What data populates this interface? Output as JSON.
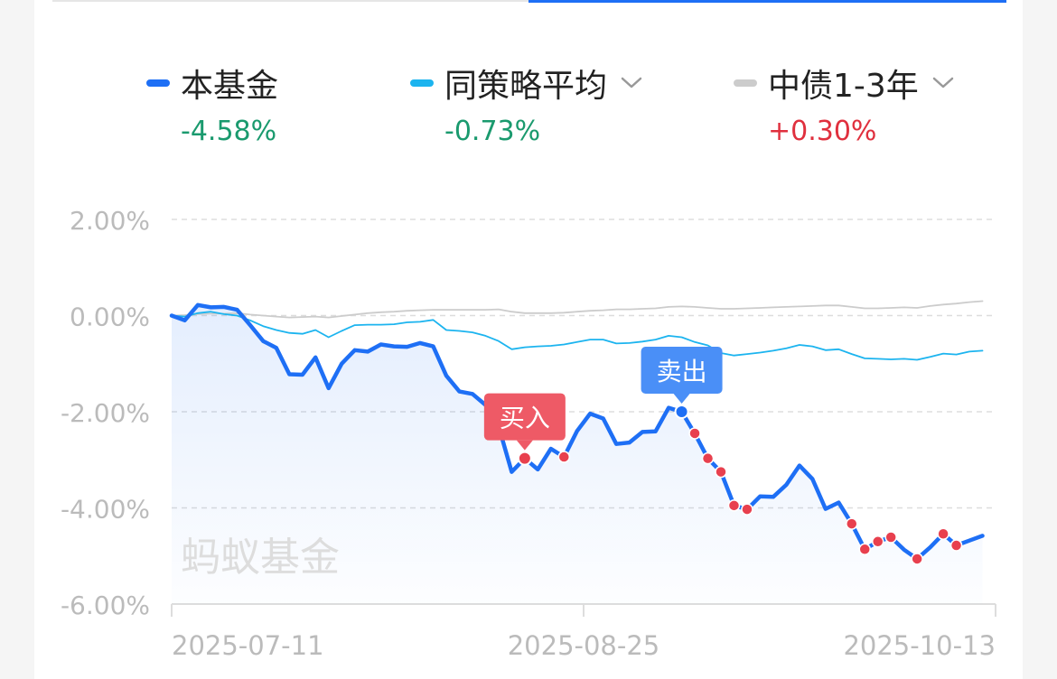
{
  "tabs": {
    "active_color": "#1e6ff5",
    "inactive_color": "#e6e6e6"
  },
  "legend": [
    {
      "name": "本基金",
      "value": "-4.58%",
      "color": "#1e6ff5",
      "value_color": "#1a9a6e",
      "has_dropdown": false
    },
    {
      "name": "同策略平均",
      "value": "-0.73%",
      "color": "#1cb4ef",
      "value_color": "#1a9a6e",
      "has_dropdown": true,
      "icon": "chevron-down-icon"
    },
    {
      "name": "中债1-3年",
      "value": "+0.30%",
      "color": "#cccccc",
      "value_color": "#e0303e",
      "has_dropdown": true,
      "icon": "chevron-down-icon"
    }
  ],
  "watermark": "蚂蚁基金",
  "chart_data": {
    "type": "line",
    "ylim": [
      -6,
      2
    ],
    "yticks": [
      2,
      0,
      -2,
      -4,
      -6
    ],
    "ytick_labels": [
      "2.00%",
      "0.00%",
      "-2.00%",
      "-4.00%",
      "-6.00%"
    ],
    "xlim": [
      0,
      63
    ],
    "xtick_labels": [
      {
        "index": 0,
        "label": "2025-07-11"
      },
      {
        "index": 31.5,
        "label": "2025-08-25"
      },
      {
        "index": 63,
        "label": "2025-10-13"
      }
    ],
    "series": [
      {
        "name": "本基金",
        "color": "#1e6ff5",
        "values": [
          0.0,
          -0.1,
          0.22,
          0.17,
          0.18,
          0.12,
          -0.2,
          -0.53,
          -0.67,
          -1.22,
          -1.23,
          -0.87,
          -1.51,
          -1.0,
          -0.72,
          -0.75,
          -0.6,
          -0.64,
          -0.65,
          -0.57,
          -0.64,
          -1.25,
          -1.58,
          -1.63,
          -1.86,
          -2.3,
          -3.25,
          -2.97,
          -3.2,
          -2.77,
          -2.94,
          -2.4,
          -2.04,
          -2.14,
          -2.67,
          -2.64,
          -2.42,
          -2.41,
          -1.92,
          -2.0,
          -2.45,
          -2.97,
          -3.25,
          -3.95,
          -4.03,
          -3.76,
          -3.77,
          -3.52,
          -3.12,
          -3.4,
          -4.02,
          -3.89,
          -4.33,
          -4.86,
          -4.7,
          -4.61,
          -4.87,
          -5.06,
          -4.82,
          -4.54,
          -4.78,
          -4.68,
          -4.58
        ]
      },
      {
        "name": "同策略平均",
        "color": "#1cb4ef",
        "values": [
          0.0,
          -0.02,
          0.05,
          0.08,
          0.03,
          0.0,
          -0.1,
          -0.22,
          -0.3,
          -0.36,
          -0.38,
          -0.3,
          -0.45,
          -0.32,
          -0.2,
          -0.19,
          -0.19,
          -0.18,
          -0.14,
          -0.13,
          -0.09,
          -0.3,
          -0.32,
          -0.35,
          -0.42,
          -0.53,
          -0.7,
          -0.66,
          -0.64,
          -0.63,
          -0.6,
          -0.55,
          -0.5,
          -0.5,
          -0.58,
          -0.57,
          -0.54,
          -0.5,
          -0.42,
          -0.45,
          -0.55,
          -0.62,
          -0.78,
          -0.83,
          -0.8,
          -0.77,
          -0.73,
          -0.68,
          -0.61,
          -0.64,
          -0.72,
          -0.7,
          -0.8,
          -0.89,
          -0.9,
          -0.91,
          -0.9,
          -0.92,
          -0.86,
          -0.79,
          -0.81,
          -0.75,
          -0.73
        ]
      },
      {
        "name": "中债1-3年",
        "color": "#cccccc",
        "values": [
          0.0,
          0.01,
          0.03,
          0.04,
          0.04,
          0.05,
          0.02,
          0.0,
          -0.02,
          -0.04,
          -0.03,
          -0.02,
          -0.04,
          -0.01,
          0.02,
          0.05,
          0.07,
          0.08,
          0.1,
          0.11,
          0.12,
          0.12,
          0.12,
          0.12,
          0.12,
          0.13,
          0.08,
          0.05,
          0.05,
          0.05,
          0.06,
          0.08,
          0.1,
          0.11,
          0.13,
          0.13,
          0.14,
          0.15,
          0.18,
          0.19,
          0.18,
          0.16,
          0.14,
          0.14,
          0.15,
          0.16,
          0.17,
          0.18,
          0.19,
          0.2,
          0.21,
          0.21,
          0.18,
          0.15,
          0.15,
          0.16,
          0.17,
          0.16,
          0.2,
          0.23,
          0.25,
          0.28,
          0.3
        ]
      }
    ],
    "hold_period": {
      "start": 27,
      "end": 39,
      "style": "dotted",
      "color": "#e8404e"
    },
    "hold_period_2": {
      "start": 39,
      "end": 60,
      "style": "dotted",
      "color": "#e8404e"
    },
    "markers": [
      {
        "label": "买入",
        "index": 27,
        "color": "#ee5a66"
      },
      {
        "label": "卖出",
        "index": 39,
        "color": "#4a8ff7"
      }
    ]
  }
}
